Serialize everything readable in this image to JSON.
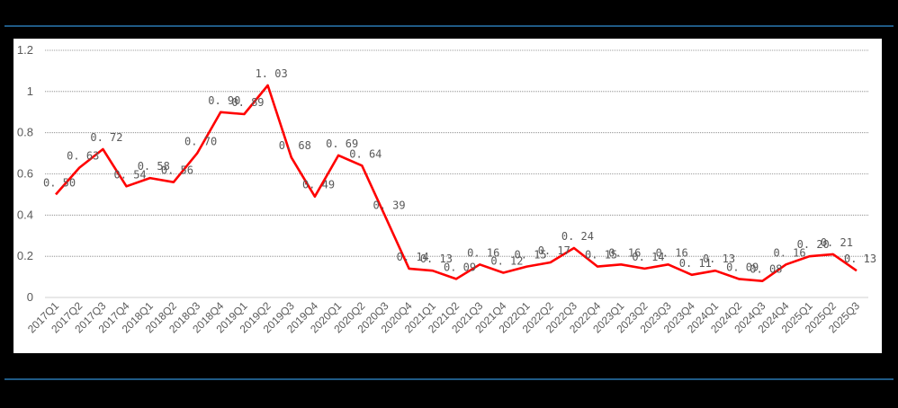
{
  "colors": {
    "background": "#000000",
    "panel": "#ffffff",
    "rule": "#1f5a85",
    "line": "#ff0000",
    "grid": "#7f7f7f",
    "text": "#595959"
  },
  "chart_data": {
    "type": "line",
    "title": "",
    "xlabel": "",
    "ylabel": "",
    "ylim": [
      0,
      1.2
    ],
    "yticks": [
      "0",
      "0.2",
      "0.4",
      "0.6",
      "0.8",
      "1",
      "1.2"
    ],
    "grid": true,
    "legend": null,
    "categories": [
      "2017Q1",
      "2017Q2",
      "2017Q3",
      "2017Q4",
      "2018Q1",
      "2018Q2",
      "2018Q3",
      "2018Q4",
      "2019Q1",
      "2019Q2",
      "2019Q3",
      "2019Q4",
      "2020Q1",
      "2020Q2",
      "2020Q3",
      "2020Q4",
      "2021Q1",
      "2021Q2",
      "2021Q3",
      "2021Q4",
      "2022Q1",
      "2022Q2",
      "2022Q3",
      "2022Q4",
      "2023Q1",
      "2023Q2",
      "2023Q3",
      "2023Q4",
      "2024Q1",
      "2024Q2",
      "2024Q3",
      "2024Q4",
      "2025Q1",
      "2025Q2",
      "2025Q3"
    ],
    "series": [
      {
        "name": "",
        "color": "#ff0000",
        "values": [
          0.5,
          0.63,
          0.72,
          0.54,
          0.58,
          0.56,
          0.7,
          0.9,
          0.89,
          1.03,
          0.68,
          0.49,
          0.69,
          0.64,
          0.39,
          0.14,
          0.13,
          0.09,
          0.16,
          0.12,
          0.15,
          0.17,
          0.24,
          0.15,
          0.16,
          0.14,
          0.16,
          0.11,
          0.13,
          0.09,
          0.08,
          0.16,
          0.2,
          0.21,
          0.13
        ],
        "labels": [
          "0.50",
          "0.63",
          "0.72",
          "0.54",
          "0.58",
          "0.56",
          "0.70",
          "0.90",
          "0.89",
          "1.03",
          "0.68",
          "0.49",
          "0.69",
          "0.64",
          "0.39",
          "0.14",
          "0.13",
          "0.09",
          "0.16",
          "0.12",
          "0.15",
          "0.17",
          "0.24",
          "0.15",
          "0.16",
          "0.14",
          "0.16",
          "0.11",
          "0.13",
          "0.09",
          "0.08",
          "0.16",
          "0.20",
          "0.21",
          "0.13"
        ]
      }
    ]
  }
}
